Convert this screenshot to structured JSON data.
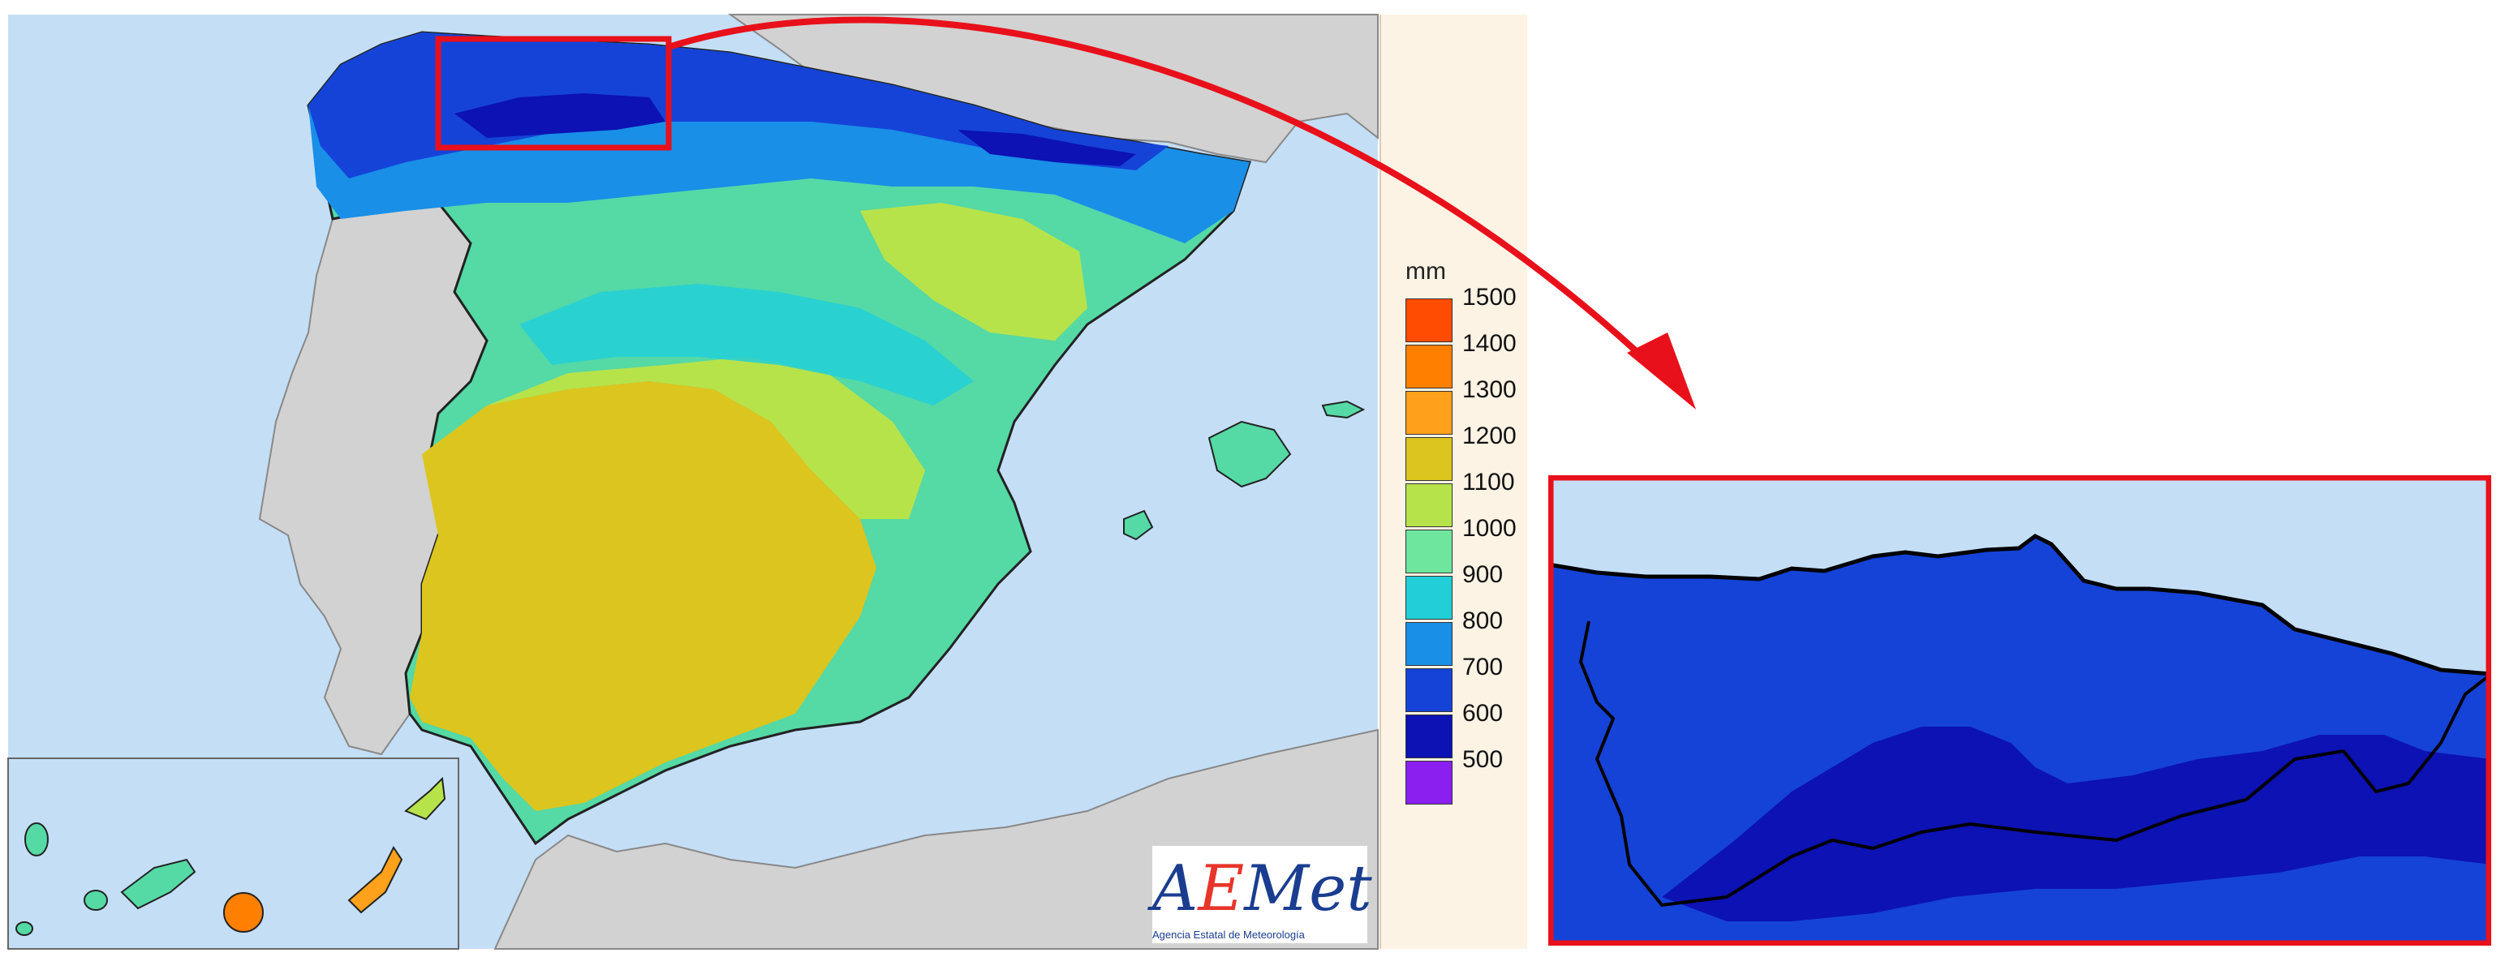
{
  "map": {
    "colors": {
      "sea": "#c4def6",
      "land": "#d2d2d2",
      "border": "#1a1a1a",
      "highlight": "#e8101a"
    }
  },
  "legend": {
    "unit": "mm",
    "items": [
      {
        "value": "1500",
        "color": "#ff4c00"
      },
      {
        "value": "1400",
        "color": "#ff7f00"
      },
      {
        "value": "1300",
        "color": "#ffa11a"
      },
      {
        "value": "1200",
        "color": "#dcc51e"
      },
      {
        "value": "1100",
        "color": "#b7e34a"
      },
      {
        "value": "1000",
        "color": "#6fe69d"
      },
      {
        "value": "900",
        "color": "#22cfd8"
      },
      {
        "value": "800",
        "color": "#198fe8"
      },
      {
        "value": "700",
        "color": "#1543d8"
      },
      {
        "value": "600",
        "color": "#0c12b3"
      },
      {
        "value": "500",
        "color": "#8b1ff0"
      }
    ]
  },
  "logo": {
    "mark_a": "A",
    "mark_e": "E",
    "mark_rest": "Met",
    "caption": "Agencia Estatal de Meteorología"
  }
}
